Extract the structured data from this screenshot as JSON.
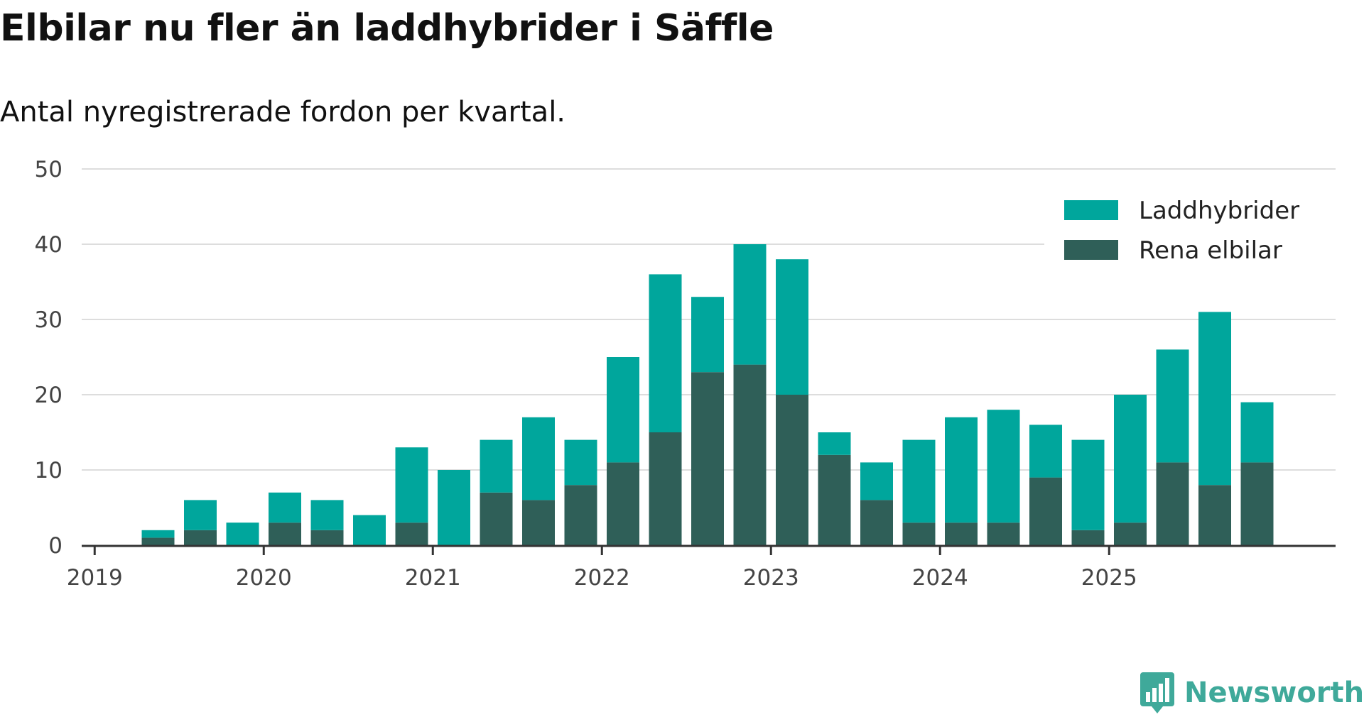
{
  "header": {
    "title": "Elbilar nu fler än laddhybrider i Säffle",
    "subtitle": "Antal nyregistrerade fordon per kvartal."
  },
  "brand": {
    "name": "Newsworthy",
    "icon": "bar-chart-speech-icon"
  },
  "colors": {
    "laddhybrider": "#00a69c",
    "elbilar": "#2f5f58",
    "grid": "#dddddd",
    "axis": "#333333",
    "brand": "#3fa99a"
  },
  "chart_data": {
    "type": "bar",
    "stacked": true,
    "title": "Elbilar nu fler än laddhybrider i Säffle",
    "subtitle": "Antal nyregistrerade fordon per kvartal.",
    "xlabel": "",
    "ylabel": "",
    "ylim": [
      0,
      50
    ],
    "yticks": [
      0,
      10,
      20,
      30,
      40,
      50
    ],
    "xticks": [
      {
        "label": "2019",
        "index": 0
      },
      {
        "label": "2020",
        "index": 4
      },
      {
        "label": "2021",
        "index": 8
      },
      {
        "label": "2022",
        "index": 12
      },
      {
        "label": "2023",
        "index": 16
      },
      {
        "label": "2024",
        "index": 20
      },
      {
        "label": "2025",
        "index": 24
      }
    ],
    "categories": [
      "2019 Q1",
      "2019 Q2",
      "2019 Q3",
      "2019 Q4",
      "2020 Q1",
      "2020 Q2",
      "2020 Q3",
      "2020 Q4",
      "2021 Q1",
      "2021 Q2",
      "2021 Q3",
      "2021 Q4",
      "2022 Q1",
      "2022 Q2",
      "2022 Q3",
      "2022 Q4",
      "2023 Q1",
      "2023 Q2",
      "2023 Q3",
      "2023 Q4",
      "2024 Q1",
      "2024 Q2",
      "2024 Q3",
      "2024 Q4",
      "2025 Q1",
      "2025 Q2",
      "2025 Q3",
      "2025 Q4"
    ],
    "series": [
      {
        "name": "Rena elbilar",
        "color": "#2f5f58",
        "values": [
          0,
          1,
          2,
          0,
          3,
          2,
          0,
          3,
          0,
          7,
          6,
          8,
          11,
          15,
          23,
          24,
          20,
          12,
          6,
          3,
          3,
          3,
          9,
          2,
          3,
          11,
          8,
          11
        ]
      },
      {
        "name": "Laddhybrider",
        "color": "#00a69c",
        "values": [
          0,
          1,
          4,
          3,
          4,
          4,
          4,
          10,
          10,
          7,
          11,
          6,
          14,
          21,
          10,
          16,
          18,
          3,
          5,
          11,
          14,
          15,
          7,
          12,
          17,
          15,
          23,
          8
        ]
      }
    ],
    "legend": {
      "position": "top-right",
      "entries": [
        "Laddhybrider",
        "Rena elbilar"
      ]
    },
    "grid": true
  }
}
